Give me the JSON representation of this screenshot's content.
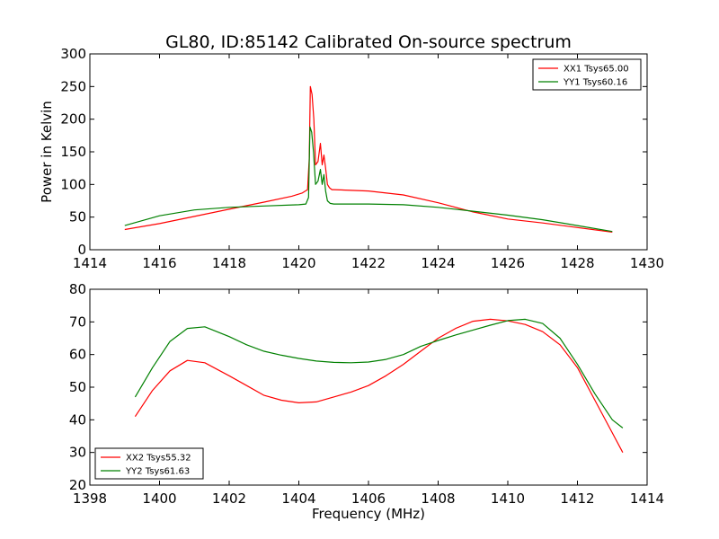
{
  "chart_data": [
    {
      "type": "line",
      "title": "GL80, ID:85142 Calibrated On-source spectrum",
      "xlabel": "",
      "ylabel": "Power in Kelvin",
      "xlim": [
        1414,
        1430
      ],
      "ylim": [
        0,
        300
      ],
      "xticks": [
        "1414",
        "1416",
        "1418",
        "1420",
        "1422",
        "1424",
        "1426",
        "1428",
        "1430"
      ],
      "yticks": [
        "0",
        "50",
        "100",
        "150",
        "200",
        "250",
        "300"
      ],
      "legend_position": "top-right",
      "grid": false,
      "series": [
        {
          "name": "XX1 Tsys65.00",
          "color": "#ff0000",
          "x": [
            1415.0,
            1416.0,
            1417.0,
            1418.0,
            1419.0,
            1419.8,
            1420.1,
            1420.25,
            1420.3,
            1420.33,
            1420.38,
            1420.43,
            1420.48,
            1420.55,
            1420.62,
            1420.67,
            1420.72,
            1420.77,
            1420.82,
            1420.88,
            1420.95,
            1421.0,
            1422.0,
            1423.0,
            1424.0,
            1425.0,
            1426.0,
            1427.0,
            1428.0,
            1429.0
          ],
          "y": [
            31,
            40,
            51,
            62,
            73,
            82,
            87,
            92,
            140,
            250,
            238,
            200,
            130,
            135,
            163,
            130,
            145,
            125,
            100,
            95,
            92,
            92,
            90,
            84,
            72,
            58,
            47,
            41,
            34,
            27
          ]
        },
        {
          "name": "YY1 Tsys60.16",
          "color": "#008000",
          "x": [
            1415.0,
            1416.0,
            1417.0,
            1418.0,
            1419.0,
            1420.0,
            1420.2,
            1420.28,
            1420.32,
            1420.37,
            1420.42,
            1420.48,
            1420.55,
            1420.62,
            1420.67,
            1420.72,
            1420.77,
            1420.82,
            1420.9,
            1421.0,
            1422.0,
            1423.0,
            1424.0,
            1425.0,
            1426.0,
            1427.0,
            1428.0,
            1429.0
          ],
          "y": [
            37,
            52,
            61,
            65,
            67,
            69,
            70,
            80,
            188,
            180,
            150,
            100,
            105,
            123,
            100,
            115,
            90,
            75,
            71,
            70,
            70,
            69,
            65,
            59,
            53,
            46,
            37,
            28
          ]
        }
      ]
    },
    {
      "type": "line",
      "title": "",
      "xlabel": "Frequency (MHz)",
      "ylabel": "",
      "xlim": [
        1398,
        1414
      ],
      "ylim": [
        20,
        80
      ],
      "xticks": [
        "1398",
        "1400",
        "1402",
        "1404",
        "1406",
        "1408",
        "1410",
        "1412",
        "1414"
      ],
      "yticks": [
        "20",
        "30",
        "40",
        "50",
        "60",
        "70",
        "80"
      ],
      "legend_position": "bottom-left",
      "grid": false,
      "series": [
        {
          "name": "XX2 Tsys55.32",
          "color": "#ff0000",
          "x": [
            1399.3,
            1399.8,
            1400.3,
            1400.8,
            1401.3,
            1402.0,
            1402.5,
            1403.0,
            1403.5,
            1404.0,
            1404.5,
            1405.0,
            1405.5,
            1406.0,
            1406.5,
            1407.0,
            1407.5,
            1408.0,
            1408.5,
            1409.0,
            1409.5,
            1410.0,
            1410.5,
            1411.0,
            1411.5,
            1412.0,
            1412.5,
            1413.0,
            1413.3
          ],
          "y": [
            41,
            49,
            55,
            58.2,
            57.5,
            53.5,
            50.5,
            47.5,
            46,
            45.2,
            45.5,
            47,
            48.5,
            50.5,
            53.5,
            57,
            61,
            65,
            68,
            70.2,
            70.8,
            70.3,
            69.2,
            67,
            63,
            56,
            46,
            36,
            30
          ]
        },
        {
          "name": "YY2 Tsys61.63",
          "color": "#008000",
          "x": [
            1399.3,
            1399.8,
            1400.3,
            1400.8,
            1401.3,
            1402.0,
            1402.5,
            1403.0,
            1403.5,
            1404.0,
            1404.5,
            1405.0,
            1405.5,
            1406.0,
            1406.5,
            1407.0,
            1407.5,
            1408.0,
            1408.5,
            1409.0,
            1409.5,
            1410.0,
            1410.5,
            1411.0,
            1411.5,
            1412.0,
            1412.5,
            1413.0,
            1413.3
          ],
          "y": [
            47,
            56,
            64,
            68,
            68.5,
            65.5,
            63,
            61,
            59.8,
            58.8,
            58,
            57.6,
            57.5,
            57.7,
            58.5,
            60,
            62.5,
            64.3,
            66,
            67.5,
            69,
            70.4,
            70.8,
            69.5,
            65,
            57,
            48,
            40,
            37.5
          ]
        }
      ]
    }
  ]
}
